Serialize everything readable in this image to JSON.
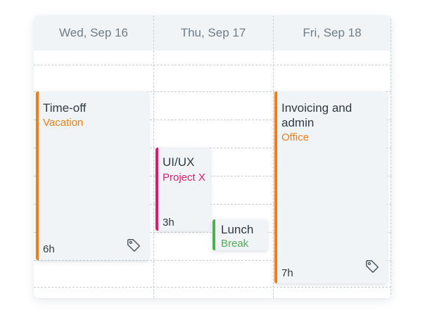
{
  "colors": {
    "orange": "#f07e18",
    "pink": "#e0196b",
    "green": "#4caf50"
  },
  "days": [
    {
      "label": "Wed, Sep 16"
    },
    {
      "label": "Thu, Sep 17"
    },
    {
      "label": "Fri, Sep 18"
    }
  ],
  "events": {
    "timeoff": {
      "title": "Time-off",
      "category": "Vacation",
      "duration": "6h",
      "icon": "tag-icon"
    },
    "uiux": {
      "title": "UI/UX",
      "category": "Project X",
      "duration": "3h"
    },
    "lunch": {
      "title": "Lunch",
      "category": "Break"
    },
    "invoicing": {
      "title": "Invoicing and admin",
      "category": "Office",
      "duration": "7h",
      "icon": "tag-icon"
    }
  }
}
